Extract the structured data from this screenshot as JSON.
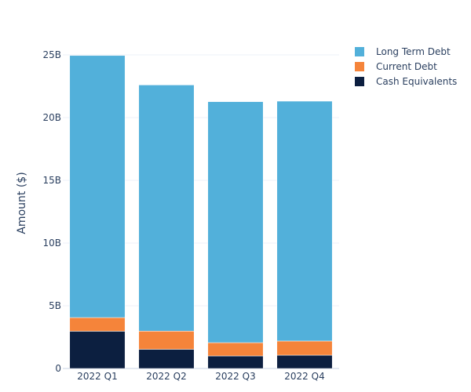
{
  "chart_data": {
    "type": "bar",
    "stacked": true,
    "title": "",
    "xlabel": "",
    "ylabel": "Amount ($)",
    "ylim": [
      0,
      25
    ],
    "y_unit_suffix": "B",
    "yticks": [
      0,
      5,
      10,
      15,
      20,
      25
    ],
    "ytick_labels": [
      "0",
      "5B",
      "10B",
      "15B",
      "20B",
      "25B"
    ],
    "grid": true,
    "legend_position": "top-right",
    "categories": [
      "2022 Q1",
      "2022 Q2",
      "2022 Q3",
      "2022 Q4"
    ],
    "series": [
      {
        "name": "Cash Equivalents",
        "color": "#0c1f40",
        "values": [
          2.97,
          1.53,
          1.0,
          1.06
        ]
      },
      {
        "name": "Current Debt",
        "color": "#f5843a",
        "values": [
          1.09,
          1.45,
          1.06,
          1.13
        ]
      },
      {
        "name": "Long Term Debt",
        "color": "#52b0da",
        "values": [
          20.89,
          19.62,
          19.21,
          19.12
        ]
      }
    ]
  },
  "legend": {
    "items": [
      {
        "label": "Long Term Debt",
        "color": "#52b0da"
      },
      {
        "label": "Current Debt",
        "color": "#f5843a"
      },
      {
        "label": "Cash Equivalents",
        "color": "#0c1f40"
      }
    ]
  }
}
